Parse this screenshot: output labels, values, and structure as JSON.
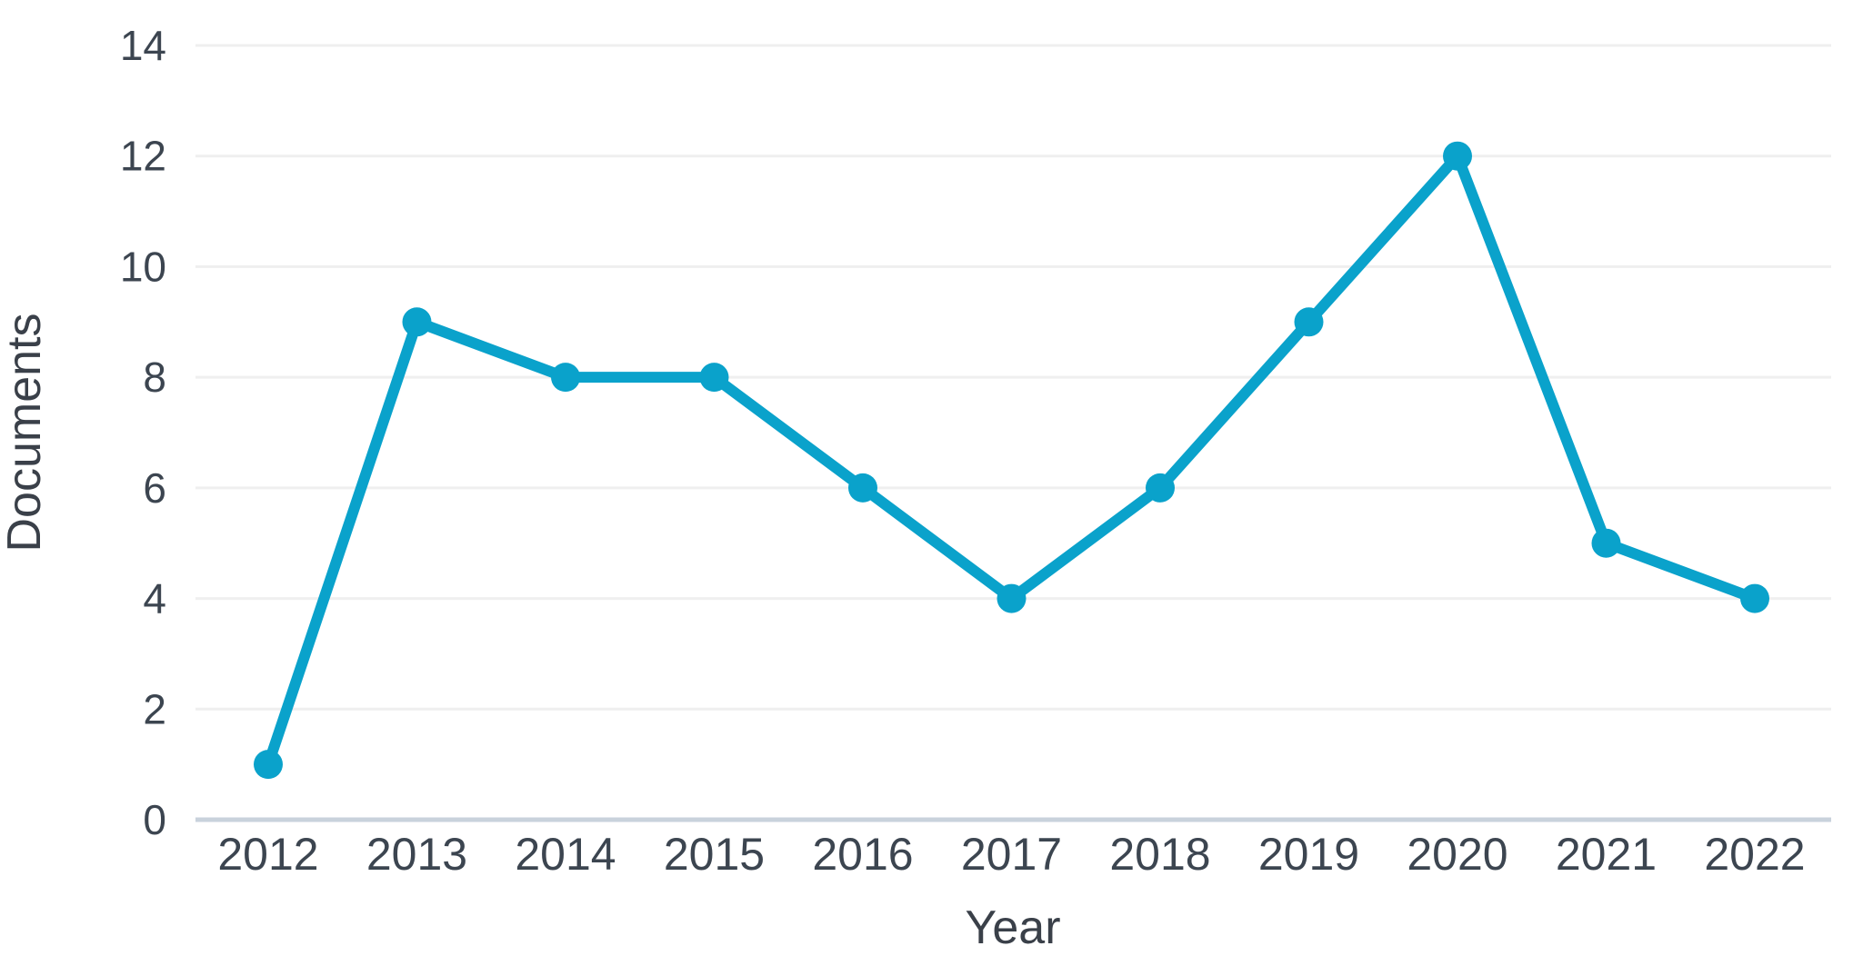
{
  "chart_data": {
    "type": "line",
    "title": "",
    "xlabel": "Year",
    "ylabel": "Documents",
    "categories": [
      "2012",
      "2013",
      "2014",
      "2015",
      "2016",
      "2017",
      "2018",
      "2019",
      "2020",
      "2021",
      "2022"
    ],
    "series": [
      {
        "name": "Documents",
        "values": [
          1,
          9,
          8,
          8,
          6,
          4,
          6,
          9,
          12,
          5,
          4
        ]
      }
    ],
    "ylim": [
      0,
      14
    ],
    "yticks": [
      0,
      2,
      4,
      6,
      8,
      10,
      12,
      14
    ],
    "grid": true,
    "legend": "none",
    "colors": {
      "line": "#0aa2cb",
      "marker": "#0aa2cb",
      "grid": "#efefef",
      "axis": "#c9d2dc",
      "tick_label": "#3c4550",
      "axis_title": "#3a4049",
      "background": "#ffffff"
    }
  }
}
